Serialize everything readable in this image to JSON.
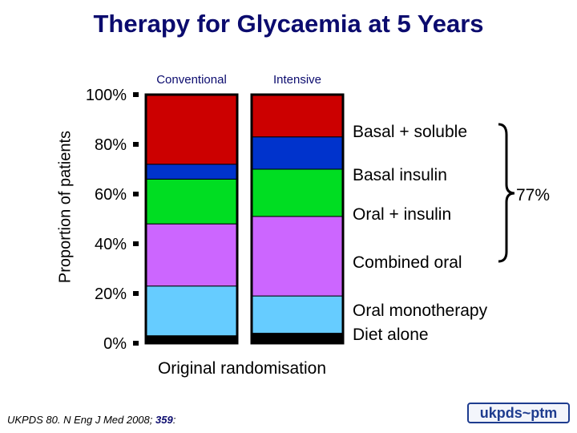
{
  "title": "Therapy for Glycaemia at 5 Years",
  "citation": {
    "text": "UKPDS 80. N Eng J Med 2008; ",
    "volume": "359",
    "suffix": ":"
  },
  "logo_text": "ukpds~ptm",
  "brace_label": "77%",
  "chart_data": {
    "type": "bar",
    "stacked": true,
    "ylabel": "Proportion of patients",
    "xlabel": "Original randomisation",
    "ylim": [
      0,
      100
    ],
    "yticks": [
      "0%",
      "20%",
      "40%",
      "60%",
      "80%",
      "100%"
    ],
    "ytick_values": [
      0,
      20,
      40,
      60,
      80,
      100
    ],
    "grid": false,
    "categories": [
      "Conventional",
      "Intensive"
    ],
    "series": [
      {
        "name": "Diet alone",
        "color": "#000000",
        "values": [
          3,
          4
        ]
      },
      {
        "name": "Oral monotherapy",
        "color": "#66ccff",
        "values": [
          20,
          15
        ]
      },
      {
        "name": "Combined oral",
        "color": "#cc66ff",
        "values": [
          25,
          32
        ]
      },
      {
        "name": "Oral + insulin",
        "color": "#00dd22",
        "values": [
          18,
          19
        ]
      },
      {
        "name": "Basal insulin",
        "color": "#0033cc",
        "values": [
          6,
          13
        ]
      },
      {
        "name": "Basal + soluble",
        "color": "#cc0000",
        "values": [
          28,
          17
        ]
      }
    ],
    "legend_position": "right"
  }
}
